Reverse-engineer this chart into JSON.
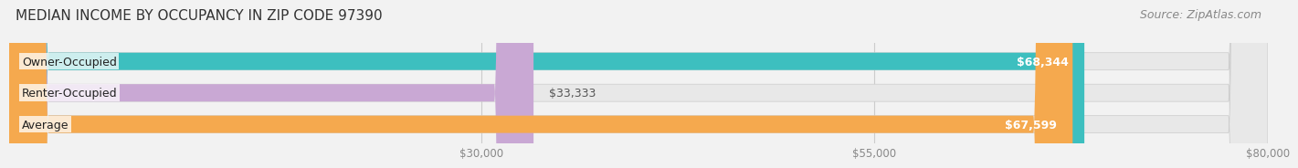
{
  "title": "MEDIAN INCOME BY OCCUPANCY IN ZIP CODE 97390",
  "source": "Source: ZipAtlas.com",
  "categories": [
    "Owner-Occupied",
    "Renter-Occupied",
    "Average"
  ],
  "values": [
    68344,
    33333,
    67599
  ],
  "bar_colors": [
    "#3dbfbf",
    "#c9a8d4",
    "#f5a94e"
  ],
  "bar_labels": [
    "$68,344",
    "$33,333",
    "$67,599"
  ],
  "xlim": [
    0,
    80000
  ],
  "xticks": [
    30000,
    55000,
    80000
  ],
  "xtick_labels": [
    "$30,000",
    "$55,000",
    "$80,000"
  ],
  "background_color": "#f2f2f2",
  "bar_bg_color": "#e8e8e8",
  "title_fontsize": 11,
  "source_fontsize": 9,
  "label_fontsize": 9,
  "tick_fontsize": 8.5,
  "bar_height": 0.55,
  "tick_color": "#888888"
}
